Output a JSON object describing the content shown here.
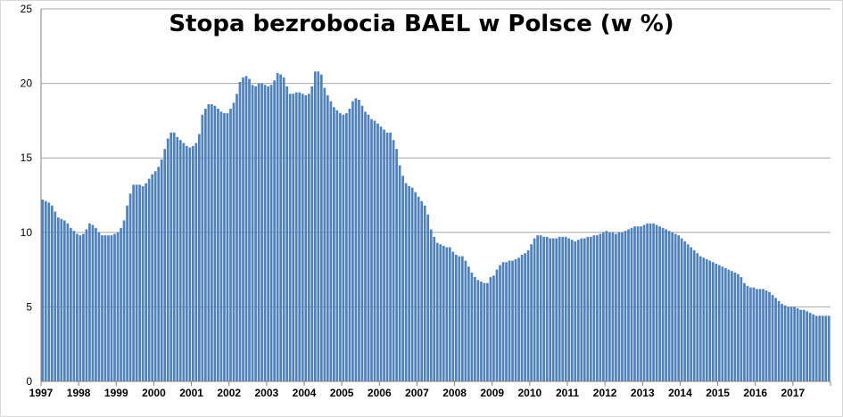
{
  "chart_data": {
    "type": "bar",
    "title": "Stopa bezrobocia BAEL w Polsce (w %)",
    "xlabel": "",
    "ylabel": "",
    "ylim": [
      0,
      25
    ],
    "yticks": [
      0,
      5,
      10,
      15,
      20,
      25
    ],
    "frequency": "monthly",
    "start": "1997-01",
    "end": "2017-12",
    "grid": true,
    "legend": "none",
    "bar_color": "#4f81bd",
    "x_tick_labels": [
      "1997",
      "1998",
      "1999",
      "2000",
      "2001",
      "2002",
      "2003",
      "2004",
      "2005",
      "2006",
      "2007",
      "2008",
      "2009",
      "2010",
      "2011",
      "2012",
      "2013",
      "2014",
      "2015",
      "2016",
      "2017"
    ],
    "values": [
      12.2,
      12.1,
      12.0,
      11.8,
      11.4,
      11.0,
      10.9,
      10.8,
      10.6,
      10.3,
      10.1,
      9.9,
      9.8,
      9.9,
      10.2,
      10.6,
      10.5,
      10.3,
      10.0,
      9.8,
      9.8,
      9.8,
      9.8,
      9.9,
      10.0,
      10.3,
      10.8,
      11.8,
      12.6,
      13.2,
      13.2,
      13.2,
      13.1,
      13.3,
      13.6,
      13.9,
      14.1,
      14.4,
      14.9,
      15.6,
      16.3,
      16.7,
      16.7,
      16.4,
      16.2,
      16.0,
      15.8,
      15.7,
      15.8,
      16.0,
      16.6,
      17.9,
      18.3,
      18.6,
      18.6,
      18.5,
      18.3,
      18.1,
      18.0,
      18.0,
      18.3,
      18.7,
      19.3,
      20.1,
      20.4,
      20.5,
      20.3,
      19.9,
      19.8,
      20.0,
      20.0,
      19.9,
      19.8,
      19.9,
      20.2,
      20.7,
      20.6,
      20.4,
      19.8,
      19.3,
      19.3,
      19.4,
      19.4,
      19.3,
      19.2,
      19.3,
      19.8,
      20.8,
      20.8,
      20.6,
      19.7,
      19.2,
      18.8,
      18.4,
      18.2,
      18.0,
      17.9,
      18.0,
      18.3,
      18.8,
      19.0,
      18.9,
      18.5,
      18.1,
      17.9,
      17.6,
      17.5,
      17.3,
      17.1,
      16.9,
      16.7,
      16.7,
      16.2,
      15.6,
      14.5,
      13.8,
      13.3,
      13.1,
      13.0,
      12.7,
      12.4,
      12.1,
      11.8,
      11.2,
      10.2,
      9.7,
      9.3,
      9.2,
      9.1,
      9.0,
      9.0,
      8.7,
      8.5,
      8.4,
      8.4,
      8.1,
      7.7,
      7.3,
      7.0,
      6.8,
      6.7,
      6.6,
      6.6,
      7.0,
      7.1,
      7.5,
      7.8,
      8.0,
      8.0,
      8.1,
      8.1,
      8.2,
      8.3,
      8.5,
      8.6,
      8.8,
      9.2,
      9.6,
      9.8,
      9.8,
      9.7,
      9.7,
      9.6,
      9.6,
      9.6,
      9.7,
      9.7,
      9.7,
      9.6,
      9.5,
      9.4,
      9.5,
      9.6,
      9.6,
      9.7,
      9.7,
      9.8,
      9.8,
      9.9,
      10.0,
      10.1,
      10.0,
      10.0,
      9.9,
      10.0,
      10.0,
      10.1,
      10.2,
      10.3,
      10.4,
      10.4,
      10.4,
      10.5,
      10.6,
      10.6,
      10.6,
      10.5,
      10.4,
      10.3,
      10.2,
      10.1,
      10.0,
      9.9,
      9.8,
      9.6,
      9.4,
      9.2,
      9.0,
      8.8,
      8.6,
      8.4,
      8.3,
      8.2,
      8.1,
      8.0,
      7.9,
      7.8,
      7.7,
      7.6,
      7.5,
      7.4,
      7.3,
      7.2,
      7.0,
      6.6,
      6.4,
      6.3,
      6.3,
      6.2,
      6.2,
      6.2,
      6.1,
      6.0,
      5.8,
      5.6,
      5.4,
      5.2,
      5.1,
      5.0,
      5.0,
      5.0,
      4.9,
      4.8,
      4.8,
      4.7,
      4.6,
      4.5,
      4.4,
      4.4,
      4.4,
      4.4,
      4.4
    ]
  }
}
